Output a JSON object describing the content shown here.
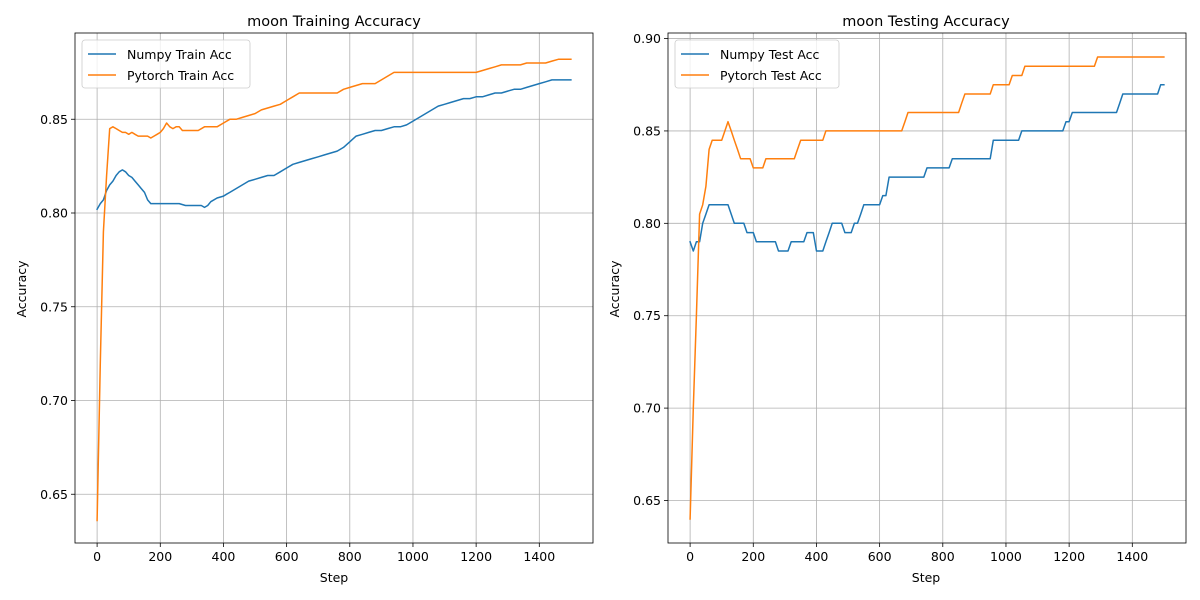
{
  "chart_data": [
    {
      "type": "line",
      "title": "moon Training Accuracy",
      "xlabel": "Step",
      "ylabel": "Accuracy",
      "xlim": [
        -70,
        1570
      ],
      "ylim": [
        0.624,
        0.896
      ],
      "xticks": [
        0,
        200,
        400,
        600,
        800,
        1000,
        1200,
        1400
      ],
      "xtick_labels": [
        "0",
        "200",
        "400",
        "600",
        "800",
        "1000",
        "1200",
        "1400"
      ],
      "yticks": [
        0.65,
        0.7,
        0.75,
        0.8,
        0.85
      ],
      "ytick_labels": [
        "0.65",
        "0.70",
        "0.75",
        "0.80",
        "0.85"
      ],
      "grid": true,
      "legend": "top-left",
      "series": [
        {
          "name": "Numpy Train Acc",
          "color": "#1f77b4",
          "x": [
            0,
            10,
            20,
            30,
            40,
            50,
            60,
            70,
            80,
            90,
            100,
            110,
            120,
            130,
            140,
            150,
            160,
            170,
            180,
            190,
            200,
            220,
            240,
            260,
            280,
            300,
            320,
            330,
            340,
            350,
            360,
            380,
            400,
            410,
            420,
            440,
            460,
            480,
            500,
            520,
            540,
            560,
            580,
            600,
            620,
            640,
            660,
            680,
            700,
            720,
            740,
            760,
            780,
            800,
            820,
            840,
            860,
            880,
            900,
            920,
            940,
            960,
            980,
            1000,
            1020,
            1040,
            1060,
            1080,
            1100,
            1120,
            1140,
            1160,
            1180,
            1200,
            1220,
            1240,
            1260,
            1280,
            1300,
            1320,
            1340,
            1360,
            1380,
            1400,
            1420,
            1440,
            1460,
            1480,
            1500
          ],
          "y": [
            0.802,
            0.805,
            0.807,
            0.812,
            0.815,
            0.817,
            0.82,
            0.822,
            0.823,
            0.822,
            0.82,
            0.819,
            0.817,
            0.815,
            0.813,
            0.811,
            0.807,
            0.805,
            0.805,
            0.805,
            0.805,
            0.805,
            0.805,
            0.805,
            0.804,
            0.804,
            0.804,
            0.804,
            0.803,
            0.804,
            0.806,
            0.808,
            0.809,
            0.81,
            0.811,
            0.813,
            0.815,
            0.817,
            0.818,
            0.819,
            0.82,
            0.82,
            0.822,
            0.824,
            0.826,
            0.827,
            0.828,
            0.829,
            0.83,
            0.831,
            0.832,
            0.833,
            0.835,
            0.838,
            0.841,
            0.842,
            0.843,
            0.844,
            0.844,
            0.845,
            0.846,
            0.846,
            0.847,
            0.849,
            0.851,
            0.853,
            0.855,
            0.857,
            0.858,
            0.859,
            0.86,
            0.861,
            0.861,
            0.862,
            0.862,
            0.863,
            0.864,
            0.864,
            0.865,
            0.866,
            0.866,
            0.867,
            0.868,
            0.869,
            0.87,
            0.871,
            0.871,
            0.871,
            0.871
          ]
        },
        {
          "name": "Pytorch Train Acc",
          "color": "#ff7f0e",
          "x": [
            0,
            10,
            20,
            30,
            40,
            50,
            60,
            70,
            80,
            90,
            100,
            110,
            120,
            130,
            140,
            150,
            160,
            170,
            180,
            190,
            200,
            210,
            220,
            230,
            240,
            250,
            260,
            270,
            280,
            300,
            320,
            340,
            360,
            380,
            400,
            420,
            440,
            460,
            480,
            500,
            520,
            540,
            560,
            580,
            600,
            620,
            640,
            660,
            680,
            700,
            720,
            740,
            760,
            780,
            800,
            820,
            840,
            860,
            880,
            900,
            920,
            940,
            960,
            980,
            1000,
            1050,
            1100,
            1150,
            1200,
            1220,
            1240,
            1260,
            1280,
            1300,
            1320,
            1340,
            1360,
            1380,
            1400,
            1420,
            1440,
            1460,
            1480,
            1500
          ],
          "y": [
            0.636,
            0.72,
            0.79,
            0.82,
            0.845,
            0.846,
            0.845,
            0.844,
            0.843,
            0.843,
            0.842,
            0.843,
            0.842,
            0.841,
            0.841,
            0.841,
            0.841,
            0.84,
            0.841,
            0.842,
            0.843,
            0.845,
            0.848,
            0.846,
            0.845,
            0.846,
            0.846,
            0.844,
            0.844,
            0.844,
            0.844,
            0.846,
            0.846,
            0.846,
            0.848,
            0.85,
            0.85,
            0.851,
            0.852,
            0.853,
            0.855,
            0.856,
            0.857,
            0.858,
            0.86,
            0.862,
            0.864,
            0.864,
            0.864,
            0.864,
            0.864,
            0.864,
            0.864,
            0.866,
            0.867,
            0.868,
            0.869,
            0.869,
            0.869,
            0.871,
            0.873,
            0.875,
            0.875,
            0.875,
            0.875,
            0.875,
            0.875,
            0.875,
            0.875,
            0.876,
            0.877,
            0.878,
            0.879,
            0.879,
            0.879,
            0.879,
            0.88,
            0.88,
            0.88,
            0.88,
            0.881,
            0.882,
            0.882,
            0.882
          ]
        }
      ]
    },
    {
      "type": "line",
      "title": "moon Testing Accuracy",
      "xlabel": "Step",
      "ylabel": "Accuracy",
      "xlim": [
        -70,
        1570
      ],
      "ylim": [
        0.627,
        0.903
      ],
      "xticks": [
        0,
        200,
        400,
        600,
        800,
        1000,
        1200,
        1400
      ],
      "xtick_labels": [
        "0",
        "200",
        "400",
        "600",
        "800",
        "1000",
        "1200",
        "1400"
      ],
      "yticks": [
        0.65,
        0.7,
        0.75,
        0.8,
        0.85,
        0.9
      ],
      "ytick_labels": [
        "0.65",
        "0.70",
        "0.75",
        "0.80",
        "0.85",
        "0.90"
      ],
      "grid": true,
      "legend": "top-left",
      "series": [
        {
          "name": "Numpy Test Acc",
          "color": "#1f77b4",
          "x": [
            0,
            10,
            20,
            30,
            40,
            50,
            60,
            70,
            80,
            90,
            100,
            110,
            120,
            130,
            140,
            150,
            160,
            170,
            180,
            190,
            200,
            210,
            220,
            230,
            240,
            250,
            260,
            270,
            280,
            290,
            300,
            310,
            320,
            330,
            340,
            350,
            360,
            370,
            380,
            390,
            400,
            410,
            420,
            430,
            440,
            450,
            460,
            470,
            480,
            490,
            500,
            510,
            520,
            530,
            540,
            550,
            560,
            570,
            580,
            590,
            600,
            610,
            620,
            630,
            640,
            700,
            740,
            750,
            800,
            820,
            830,
            900,
            950,
            960,
            1040,
            1050,
            1180,
            1190,
            1200,
            1210,
            1300,
            1350,
            1360,
            1370,
            1480,
            1490,
            1500
          ],
          "y": [
            0.79,
            0.785,
            0.79,
            0.79,
            0.8,
            0.805,
            0.81,
            0.81,
            0.81,
            0.81,
            0.81,
            0.81,
            0.81,
            0.805,
            0.8,
            0.8,
            0.8,
            0.8,
            0.795,
            0.795,
            0.795,
            0.79,
            0.79,
            0.79,
            0.79,
            0.79,
            0.79,
            0.79,
            0.785,
            0.785,
            0.785,
            0.785,
            0.79,
            0.79,
            0.79,
            0.79,
            0.79,
            0.795,
            0.795,
            0.795,
            0.785,
            0.785,
            0.785,
            0.79,
            0.795,
            0.8,
            0.8,
            0.8,
            0.8,
            0.795,
            0.795,
            0.795,
            0.8,
            0.8,
            0.805,
            0.81,
            0.81,
            0.81,
            0.81,
            0.81,
            0.81,
            0.815,
            0.815,
            0.825,
            0.825,
            0.825,
            0.825,
            0.83,
            0.83,
            0.83,
            0.835,
            0.835,
            0.835,
            0.845,
            0.845,
            0.85,
            0.85,
            0.855,
            0.855,
            0.86,
            0.86,
            0.86,
            0.865,
            0.87,
            0.87,
            0.875,
            0.875
          ]
        },
        {
          "name": "Pytorch Test Acc",
          "color": "#ff7f0e",
          "x": [
            0,
            10,
            20,
            30,
            40,
            50,
            60,
            70,
            80,
            90,
            100,
            110,
            120,
            130,
            140,
            150,
            160,
            170,
            180,
            190,
            200,
            210,
            220,
            230,
            240,
            250,
            260,
            270,
            280,
            300,
            320,
            330,
            340,
            350,
            360,
            380,
            400,
            410,
            420,
            430,
            440,
            500,
            600,
            670,
            680,
            690,
            700,
            800,
            850,
            860,
            870,
            900,
            950,
            960,
            970,
            1000,
            1010,
            1020,
            1040,
            1050,
            1060,
            1070,
            1100,
            1200,
            1280,
            1290,
            1300,
            1400,
            1500
          ],
          "y": [
            0.64,
            0.7,
            0.75,
            0.805,
            0.81,
            0.82,
            0.84,
            0.845,
            0.845,
            0.845,
            0.845,
            0.85,
            0.855,
            0.85,
            0.845,
            0.84,
            0.835,
            0.835,
            0.835,
            0.835,
            0.83,
            0.83,
            0.83,
            0.83,
            0.835,
            0.835,
            0.835,
            0.835,
            0.835,
            0.835,
            0.835,
            0.835,
            0.84,
            0.845,
            0.845,
            0.845,
            0.845,
            0.845,
            0.845,
            0.85,
            0.85,
            0.85,
            0.85,
            0.85,
            0.855,
            0.86,
            0.86,
            0.86,
            0.86,
            0.865,
            0.87,
            0.87,
            0.87,
            0.875,
            0.875,
            0.875,
            0.875,
            0.88,
            0.88,
            0.88,
            0.885,
            0.885,
            0.885,
            0.885,
            0.885,
            0.89,
            0.89,
            0.89,
            0.89
          ]
        }
      ]
    }
  ]
}
